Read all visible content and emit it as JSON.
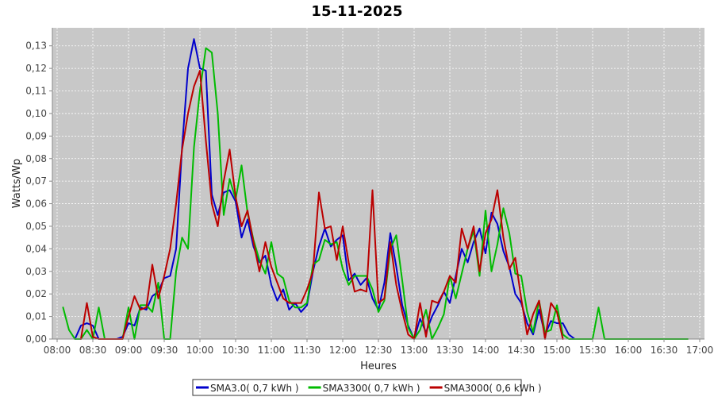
{
  "chart_data": {
    "type": "line",
    "title": "15-11-2025",
    "xlabel": "Heures",
    "ylabel": "Watts/Wp",
    "xlim": [
      "08:00",
      "17:00"
    ],
    "ylim": [
      0,
      0.138
    ],
    "x_ticks": [
      "08:00",
      "08:30",
      "09:00",
      "09:30",
      "10:00",
      "10:30",
      "11:00",
      "11:30",
      "12:00",
      "12:30",
      "13:00",
      "13:30",
      "14:00",
      "14:30",
      "15:00",
      "15:30",
      "16:00",
      "16:30",
      "17:00"
    ],
    "y_ticks": [
      "0,00",
      "0,01",
      "0,02",
      "0,03",
      "0,04",
      "0,05",
      "0,06",
      "0,07",
      "0,08",
      "0,09",
      "0,10",
      "0,11",
      "0,12",
      "0,13"
    ],
    "y_tick_values": [
      0,
      0.01,
      0.02,
      0.03,
      0.04,
      0.05,
      0.06,
      0.07,
      0.08,
      0.09,
      0.1,
      0.11,
      0.12,
      0.13
    ],
    "grid": true,
    "legend_position": "bottom",
    "plot_background": "#c8c8c8",
    "series": [
      {
        "name": "SMA3.0( 0,7 kWh )",
        "color": "#0000cc",
        "points": [
          [
            "08:15",
            0.0
          ],
          [
            "08:20",
            0.006
          ],
          [
            "08:25",
            0.007
          ],
          [
            "08:30",
            0.006
          ],
          [
            "08:35",
            0.0
          ],
          [
            "08:40",
            0.0
          ],
          [
            "08:45",
            0.0
          ],
          [
            "08:50",
            0.0
          ],
          [
            "08:55",
            0.001
          ],
          [
            "09:00",
            0.007
          ],
          [
            "09:05",
            0.006
          ],
          [
            "09:10",
            0.014
          ],
          [
            "09:15",
            0.013
          ],
          [
            "09:20",
            0.019
          ],
          [
            "09:25",
            0.021
          ],
          [
            "09:30",
            0.027
          ],
          [
            "09:35",
            0.028
          ],
          [
            "09:40",
            0.04
          ],
          [
            "09:45",
            0.085
          ],
          [
            "09:50",
            0.12
          ],
          [
            "09:55",
            0.133
          ],
          [
            "10:00",
            0.12
          ],
          [
            "10:05",
            0.119
          ],
          [
            "10:10",
            0.064
          ],
          [
            "10:15",
            0.055
          ],
          [
            "10:20",
            0.065
          ],
          [
            "10:25",
            0.066
          ],
          [
            "10:30",
            0.061
          ],
          [
            "10:35",
            0.045
          ],
          [
            "10:40",
            0.053
          ],
          [
            "10:45",
            0.041
          ],
          [
            "10:50",
            0.034
          ],
          [
            "10:55",
            0.037
          ],
          [
            "11:00",
            0.024
          ],
          [
            "11:05",
            0.017
          ],
          [
            "11:10",
            0.022
          ],
          [
            "11:15",
            0.013
          ],
          [
            "11:20",
            0.016
          ],
          [
            "11:25",
            0.012
          ],
          [
            "11:30",
            0.015
          ],
          [
            "11:35",
            0.03
          ],
          [
            "11:40",
            0.041
          ],
          [
            "11:45",
            0.049
          ],
          [
            "11:50",
            0.041
          ],
          [
            "11:55",
            0.044
          ],
          [
            "12:00",
            0.046
          ],
          [
            "12:05",
            0.026
          ],
          [
            "12:10",
            0.029
          ],
          [
            "12:15",
            0.024
          ],
          [
            "12:20",
            0.027
          ],
          [
            "12:25",
            0.018
          ],
          [
            "12:30",
            0.013
          ],
          [
            "12:35",
            0.025
          ],
          [
            "12:40",
            0.047
          ],
          [
            "12:45",
            0.032
          ],
          [
            "12:50",
            0.015
          ],
          [
            "12:55",
            0.006
          ],
          [
            "13:00",
            0.0
          ],
          [
            "13:05",
            0.009
          ],
          [
            "13:10",
            0.003
          ],
          [
            "13:15",
            0.01
          ],
          [
            "13:20",
            0.015
          ],
          [
            "13:25",
            0.021
          ],
          [
            "13:30",
            0.016
          ],
          [
            "13:35",
            0.028
          ],
          [
            "13:40",
            0.04
          ],
          [
            "13:45",
            0.034
          ],
          [
            "13:50",
            0.043
          ],
          [
            "13:55",
            0.049
          ],
          [
            "14:00",
            0.038
          ],
          [
            "14:05",
            0.056
          ],
          [
            "14:10",
            0.051
          ],
          [
            "14:15",
            0.039
          ],
          [
            "14:20",
            0.032
          ],
          [
            "14:25",
            0.02
          ],
          [
            "14:30",
            0.016
          ],
          [
            "14:35",
            0.007
          ],
          [
            "14:40",
            0.002
          ],
          [
            "14:45",
            0.013
          ],
          [
            "14:50",
            0.002
          ],
          [
            "14:55",
            0.008
          ],
          [
            "15:00",
            0.007
          ],
          [
            "15:05",
            0.007
          ],
          [
            "15:10",
            0.002
          ],
          [
            "15:15",
            0.0
          ]
        ]
      },
      {
        "name": "SMA3300( 0,7 kWh )",
        "color": "#00bb00",
        "points": [
          [
            "08:05",
            0.014
          ],
          [
            "08:10",
            0.004
          ],
          [
            "08:15",
            0.0
          ],
          [
            "08:20",
            0.0
          ],
          [
            "08:25",
            0.004
          ],
          [
            "08:30",
            0.0
          ],
          [
            "08:35",
            0.014
          ],
          [
            "08:40",
            0.0
          ],
          [
            "08:45",
            0.0
          ],
          [
            "08:50",
            0.0
          ],
          [
            "08:55",
            0.0
          ],
          [
            "09:00",
            0.014
          ],
          [
            "09:05",
            0.0
          ],
          [
            "09:10",
            0.015
          ],
          [
            "09:15",
            0.015
          ],
          [
            "09:20",
            0.012
          ],
          [
            "09:25",
            0.025
          ],
          [
            "09:30",
            0.0
          ],
          [
            "09:35",
            0.0
          ],
          [
            "09:40",
            0.03
          ],
          [
            "09:45",
            0.045
          ],
          [
            "09:50",
            0.04
          ],
          [
            "09:55",
            0.085
          ],
          [
            "10:00",
            0.11
          ],
          [
            "10:05",
            0.129
          ],
          [
            "10:10",
            0.127
          ],
          [
            "10:15",
            0.1
          ],
          [
            "10:20",
            0.055
          ],
          [
            "10:25",
            0.071
          ],
          [
            "10:30",
            0.062
          ],
          [
            "10:35",
            0.077
          ],
          [
            "10:40",
            0.056
          ],
          [
            "10:45",
            0.044
          ],
          [
            "10:50",
            0.035
          ],
          [
            "10:55",
            0.029
          ],
          [
            "11:00",
            0.043
          ],
          [
            "11:05",
            0.029
          ],
          [
            "11:10",
            0.027
          ],
          [
            "11:15",
            0.017
          ],
          [
            "11:20",
            0.014
          ],
          [
            "11:25",
            0.014
          ],
          [
            "11:30",
            0.016
          ],
          [
            "11:35",
            0.033
          ],
          [
            "11:40",
            0.035
          ],
          [
            "11:45",
            0.044
          ],
          [
            "11:50",
            0.042
          ],
          [
            "11:55",
            0.043
          ],
          [
            "12:00",
            0.031
          ],
          [
            "12:05",
            0.024
          ],
          [
            "12:10",
            0.028
          ],
          [
            "12:15",
            0.028
          ],
          [
            "12:20",
            0.028
          ],
          [
            "12:25",
            0.022
          ],
          [
            "12:30",
            0.012
          ],
          [
            "12:35",
            0.017
          ],
          [
            "12:40",
            0.04
          ],
          [
            "12:45",
            0.046
          ],
          [
            "12:50",
            0.026
          ],
          [
            "12:55",
            0.005
          ],
          [
            "13:00",
            0.0
          ],
          [
            "13:05",
            0.004
          ],
          [
            "13:10",
            0.013
          ],
          [
            "13:15",
            0.0
          ],
          [
            "13:20",
            0.005
          ],
          [
            "13:25",
            0.011
          ],
          [
            "13:30",
            0.028
          ],
          [
            "13:35",
            0.018
          ],
          [
            "13:40",
            0.029
          ],
          [
            "13:45",
            0.04
          ],
          [
            "13:50",
            0.048
          ],
          [
            "13:55",
            0.028
          ],
          [
            "14:00",
            0.057
          ],
          [
            "14:05",
            0.03
          ],
          [
            "14:10",
            0.042
          ],
          [
            "14:15",
            0.058
          ],
          [
            "14:20",
            0.047
          ],
          [
            "14:25",
            0.029
          ],
          [
            "14:30",
            0.028
          ],
          [
            "14:35",
            0.012
          ],
          [
            "14:40",
            0.003
          ],
          [
            "14:45",
            0.017
          ],
          [
            "14:50",
            0.003
          ],
          [
            "14:55",
            0.004
          ],
          [
            "15:00",
            0.015
          ],
          [
            "15:05",
            0.002
          ],
          [
            "15:10",
            0.0
          ],
          [
            "15:15",
            0.0
          ],
          [
            "15:20",
            0.0
          ],
          [
            "15:25",
            0.0
          ],
          [
            "15:30",
            0.0
          ],
          [
            "15:35",
            0.014
          ],
          [
            "15:40",
            0.0
          ],
          [
            "15:45",
            0.0
          ],
          [
            "16:00",
            0.0
          ],
          [
            "16:30",
            0.0
          ],
          [
            "16:50",
            0.0
          ]
        ]
      },
      {
        "name": "SMA3000( 0,6 kWh )",
        "color": "#bb0000",
        "points": [
          [
            "08:20",
            0.0
          ],
          [
            "08:25",
            0.016
          ],
          [
            "08:30",
            0.001
          ],
          [
            "08:35",
            0.0
          ],
          [
            "08:40",
            0.0
          ],
          [
            "08:45",
            0.0
          ],
          [
            "08:50",
            0.0
          ],
          [
            "08:55",
            0.0
          ],
          [
            "09:00",
            0.01
          ],
          [
            "09:05",
            0.019
          ],
          [
            "09:10",
            0.013
          ],
          [
            "09:15",
            0.014
          ],
          [
            "09:20",
            0.033
          ],
          [
            "09:25",
            0.018
          ],
          [
            "09:30",
            0.028
          ],
          [
            "09:35",
            0.04
          ],
          [
            "09:40",
            0.06
          ],
          [
            "09:45",
            0.084
          ],
          [
            "09:50",
            0.1
          ],
          [
            "09:55",
            0.112
          ],
          [
            "10:00",
            0.119
          ],
          [
            "10:05",
            0.088
          ],
          [
            "10:10",
            0.06
          ],
          [
            "10:15",
            0.05
          ],
          [
            "10:20",
            0.07
          ],
          [
            "10:25",
            0.084
          ],
          [
            "10:30",
            0.063
          ],
          [
            "10:35",
            0.05
          ],
          [
            "10:40",
            0.057
          ],
          [
            "10:45",
            0.043
          ],
          [
            "10:50",
            0.03
          ],
          [
            "10:55",
            0.043
          ],
          [
            "11:00",
            0.032
          ],
          [
            "11:05",
            0.025
          ],
          [
            "11:10",
            0.018
          ],
          [
            "11:15",
            0.016
          ],
          [
            "11:20",
            0.016
          ],
          [
            "11:25",
            0.016
          ],
          [
            "11:30",
            0.022
          ],
          [
            "11:35",
            0.03
          ],
          [
            "11:40",
            0.065
          ],
          [
            "11:45",
            0.049
          ],
          [
            "11:50",
            0.05
          ],
          [
            "11:55",
            0.035
          ],
          [
            "12:00",
            0.05
          ],
          [
            "12:05",
            0.034
          ],
          [
            "12:10",
            0.021
          ],
          [
            "12:15",
            0.022
          ],
          [
            "12:20",
            0.021
          ],
          [
            "12:25",
            0.066
          ],
          [
            "12:30",
            0.016
          ],
          [
            "12:35",
            0.018
          ],
          [
            "12:40",
            0.043
          ],
          [
            "12:45",
            0.024
          ],
          [
            "12:50",
            0.012
          ],
          [
            "12:55",
            0.002
          ],
          [
            "13:00",
            0.0
          ],
          [
            "13:05",
            0.016
          ],
          [
            "13:10",
            0.001
          ],
          [
            "13:15",
            0.017
          ],
          [
            "13:20",
            0.016
          ],
          [
            "13:25",
            0.021
          ],
          [
            "13:30",
            0.028
          ],
          [
            "13:35",
            0.025
          ],
          [
            "13:40",
            0.049
          ],
          [
            "13:45",
            0.04
          ],
          [
            "13:50",
            0.05
          ],
          [
            "13:55",
            0.03
          ],
          [
            "14:00",
            0.047
          ],
          [
            "14:05",
            0.053
          ],
          [
            "14:10",
            0.066
          ],
          [
            "14:15",
            0.045
          ],
          [
            "14:20",
            0.031
          ],
          [
            "14:25",
            0.036
          ],
          [
            "14:30",
            0.018
          ],
          [
            "14:35",
            0.002
          ],
          [
            "14:40",
            0.011
          ],
          [
            "14:45",
            0.017
          ],
          [
            "14:50",
            0.0
          ],
          [
            "14:55",
            0.016
          ],
          [
            "15:00",
            0.012
          ],
          [
            "15:05",
            0.0
          ]
        ]
      }
    ]
  }
}
